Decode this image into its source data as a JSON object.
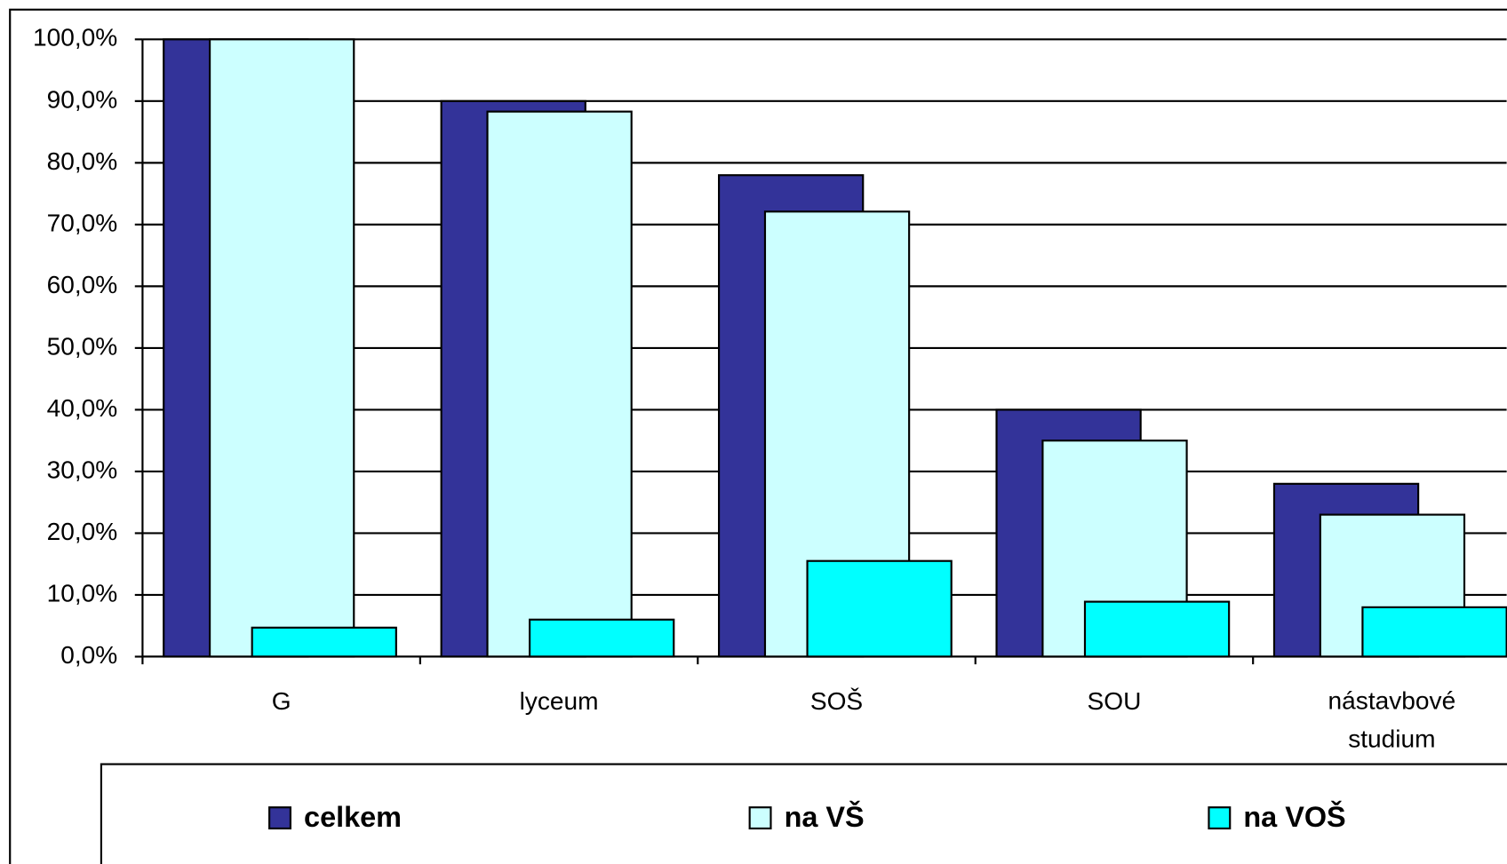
{
  "chart_data": {
    "type": "bar",
    "categories": [
      "G",
      "lyceum",
      "SOŠ",
      "SOU",
      "nástavbové studium"
    ],
    "series": [
      {
        "name": "celkem",
        "color": "#333399",
        "values": [
          100,
          90,
          78,
          40,
          28
        ]
      },
      {
        "name": "na VŠ",
        "color": "#ccffff",
        "values": [
          100,
          88.3,
          72.1,
          35,
          23
        ]
      },
      {
        "name": "na VOŠ",
        "color": "#00ffff",
        "values": [
          4.7,
          6,
          15.5,
          8.9,
          8
        ]
      }
    ],
    "ylim": [
      0,
      100
    ],
    "yticks": [
      {
        "value": 0,
        "label": "0,0%"
      },
      {
        "value": 10,
        "label": "10,0%"
      },
      {
        "value": 20,
        "label": "20,0%"
      },
      {
        "value": 30,
        "label": "30,0%"
      },
      {
        "value": 40,
        "label": "40,0%"
      },
      {
        "value": 50,
        "label": "50,0%"
      },
      {
        "value": 60,
        "label": "60,0%"
      },
      {
        "value": 70,
        "label": "70,0%"
      },
      {
        "value": 80,
        "label": "80,0%"
      },
      {
        "value": 90,
        "label": "90,0%"
      },
      {
        "value": 100,
        "label": "100,0%"
      }
    ],
    "grid": true,
    "legend": "bottom"
  }
}
